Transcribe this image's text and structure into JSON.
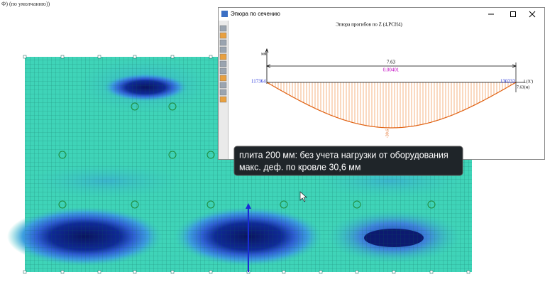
{
  "header": {
    "text": "Ф) (по умолчанию))"
  },
  "window": {
    "title": "Эпюра по сечению",
    "diagram": {
      "title": "Эпюра прогибов по Z (4,РСН4)",
      "y_unit": "мм",
      "length": "7.63",
      "value": "0.00401",
      "start_node": "117364",
      "end_node": "130232",
      "x_axis": "L(X')",
      "length_unit": "7.63(м)",
      "max_label": "-30.6"
    }
  },
  "tooltip": {
    "lines": [
      "плита 200 мм: без учета нагрузки от оборудования",
      "макс. деф. по кровле 30,6 мм"
    ]
  }
}
